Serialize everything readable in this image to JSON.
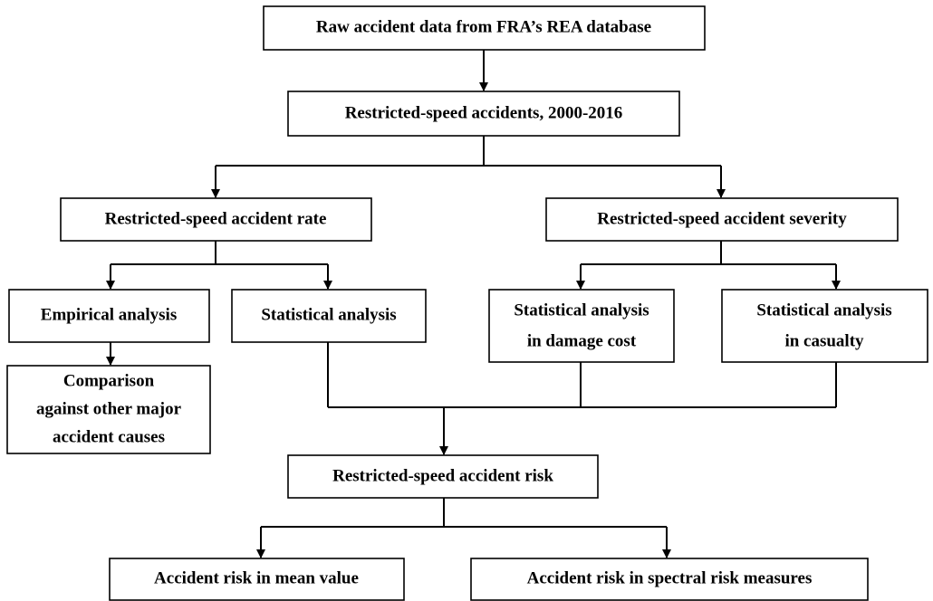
{
  "nodes": [
    {
      "lines": [
        "Raw accident data from FRA’s REA database"
      ]
    },
    {
      "lines": [
        "Restricted-speed accidents, 2000-2016"
      ]
    },
    {
      "lines": [
        "Restricted-speed accident rate"
      ]
    },
    {
      "lines": [
        "Restricted-speed accident severity"
      ]
    },
    {
      "lines": [
        "Empirical analysis"
      ]
    },
    {
      "lines": [
        "Statistical analysis"
      ]
    },
    {
      "lines": [
        "Statistical analysis",
        "in damage cost"
      ]
    },
    {
      "lines": [
        "Statistical analysis",
        "in casualty"
      ]
    },
    {
      "lines": [
        "Comparison",
        "against other major",
        "accident causes"
      ]
    },
    {
      "lines": [
        "Restricted-speed accident risk"
      ]
    },
    {
      "lines": [
        "Accident risk in mean value"
      ]
    },
    {
      "lines": [
        "Accident risk in spectral risk measures"
      ]
    }
  ]
}
